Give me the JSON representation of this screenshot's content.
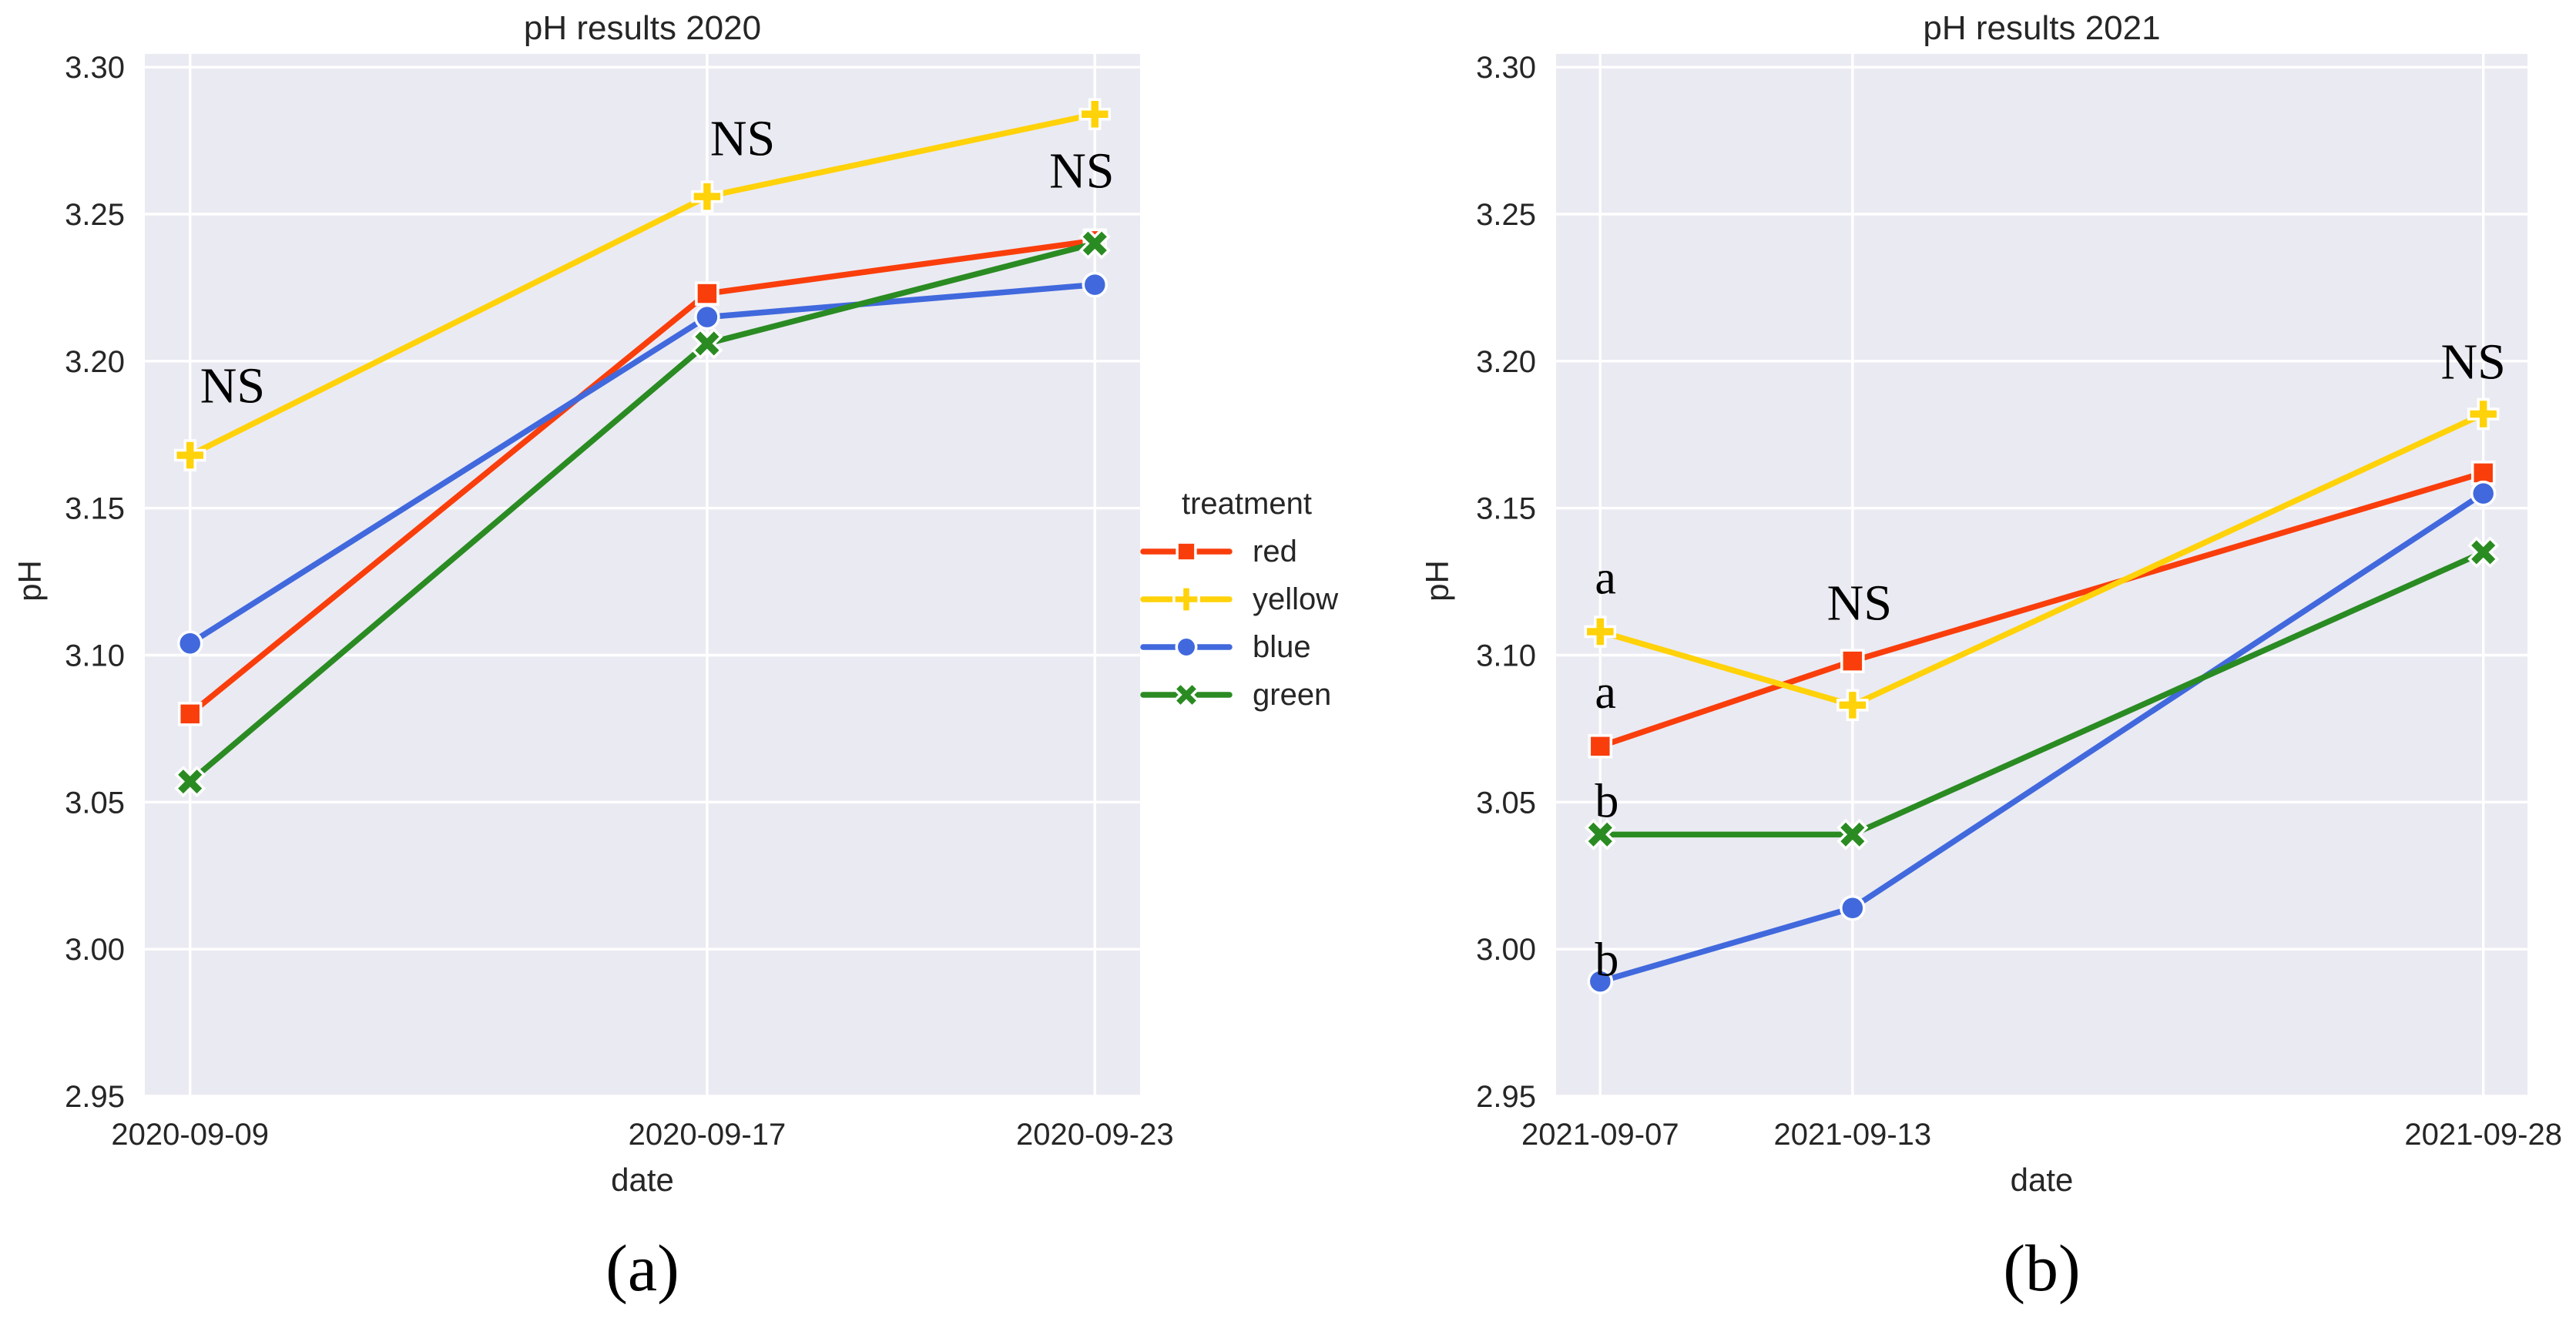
{
  "page": {
    "background": "#ffffff"
  },
  "colors": {
    "plot_bg": "#eaeaf2",
    "grid": "#ffffff",
    "tick_text": "#262626",
    "annotation_text": "#000000",
    "marker_edge": "#ffffff"
  },
  "legend": {
    "title": "treatment",
    "entries": [
      {
        "label": "red",
        "color": "#f93e0c",
        "marker": "square"
      },
      {
        "label": "yellow",
        "color": "#ffd20a",
        "marker": "plus"
      },
      {
        "label": "blue",
        "color": "#4169dd",
        "marker": "circle"
      },
      {
        "label": "green",
        "color": "#2a8b22",
        "marker": "x"
      }
    ]
  },
  "captions": {
    "a": "(a)",
    "b": "(b)"
  },
  "chart_data": [
    {
      "type": "line",
      "title": "pH results 2020",
      "xlabel": "date",
      "ylabel": "pH",
      "x": [
        "2020-09-09",
        "2020-09-17",
        "2020-09-23"
      ],
      "y_ticks": [
        "3.30",
        "3.25",
        "3.20",
        "3.15",
        "3.10",
        "3.05",
        "3.00",
        "2.95"
      ],
      "ylim": [
        2.95,
        3.3045
      ],
      "grid": true,
      "legend_position": "right of panel, center",
      "series": [
        {
          "name": "red",
          "values": [
            3.08,
            3.223,
            3.241
          ]
        },
        {
          "name": "yellow",
          "values": [
            3.168,
            3.256,
            3.284
          ]
        },
        {
          "name": "blue",
          "values": [
            3.104,
            3.215,
            3.226
          ]
        },
        {
          "name": "green",
          "values": [
            3.057,
            3.206,
            3.24
          ]
        }
      ],
      "annotations": [
        {
          "text": "NS",
          "date": "2020-09-09",
          "ph": 3.186,
          "dx": 13,
          "anchor": "start"
        },
        {
          "text": "NS",
          "date": "2020-09-17",
          "ph": 3.27,
          "dx": 4,
          "anchor": "start"
        },
        {
          "text": "NS",
          "date": "2020-09-23",
          "ph": 3.259,
          "dx": -17,
          "anchor": "middle"
        }
      ]
    },
    {
      "type": "line",
      "title": "pH results 2021",
      "xlabel": "date",
      "ylabel": "pH",
      "x": [
        "2021-09-07",
        "2021-09-13",
        "2021-09-28"
      ],
      "y_ticks": [
        "3.30",
        "3.25",
        "3.20",
        "3.15",
        "3.10",
        "3.05",
        "3.00",
        "2.95"
      ],
      "ylim": [
        2.95,
        3.3045
      ],
      "grid": true,
      "series": [
        {
          "name": "red",
          "values": [
            3.069,
            3.098,
            3.162
          ]
        },
        {
          "name": "yellow",
          "values": [
            3.108,
            3.083,
            3.182
          ]
        },
        {
          "name": "blue",
          "values": [
            2.989,
            3.014,
            3.155
          ]
        },
        {
          "name": "green",
          "values": [
            3.039,
            3.039,
            3.135
          ]
        }
      ],
      "annotations": [
        {
          "text": "a",
          "date": "2021-09-07",
          "ph": 3.121,
          "dx": -7,
          "anchor": "start"
        },
        {
          "text": "a",
          "date": "2021-09-07",
          "ph": 3.082,
          "dx": -7,
          "anchor": "start"
        },
        {
          "text": "b",
          "date": "2021-09-07",
          "ph": 3.045,
          "dx": -7,
          "anchor": "start"
        },
        {
          "text": "b",
          "date": "2021-09-07",
          "ph": 2.991,
          "dx": -7,
          "anchor": "start"
        },
        {
          "text": "NS",
          "date": "2021-09-13",
          "ph": 3.112,
          "dx": 9,
          "anchor": "middle"
        },
        {
          "text": "NS",
          "date": "2021-09-28",
          "ph": 3.194,
          "dx": -13,
          "anchor": "middle"
        }
      ]
    }
  ]
}
